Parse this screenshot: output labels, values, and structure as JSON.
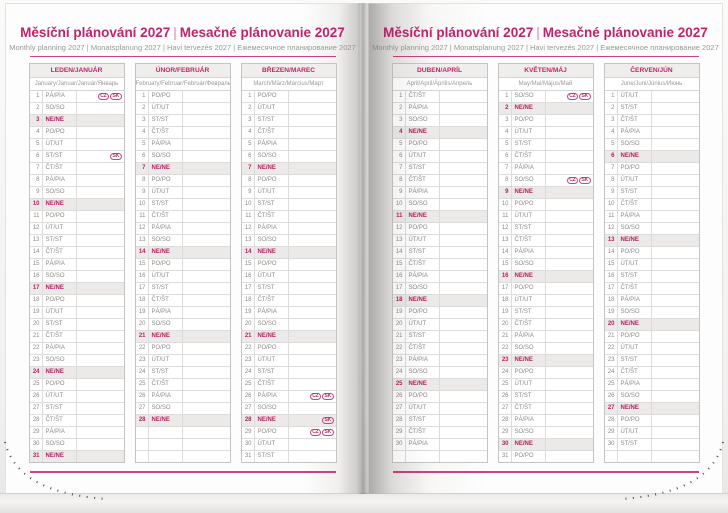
{
  "header": {
    "title_czech": "Měsíční plánování 2027",
    "title_separator": "|",
    "title_slovak": "Mesačné plánovanie 2027",
    "subtitle": "Monthly planning 2027 | Monatsplanung 2027 | Havi tervezés 2027 | Ежемесячное планирование 2027"
  },
  "colors": {
    "accent_magenta": "#c0246a",
    "sunday_text": "#b32260",
    "sunday_row_bg": "#eceae8",
    "month_header_bg": "#f0eeed",
    "grid_line": "#dedcda",
    "muted_text": "#9b9998"
  },
  "weekday_labels": [
    "PO/PO",
    "ÚT/UT",
    "ST/ST",
    "ČT/ŠT",
    "PÁ/PIA",
    "SO/SO",
    "NE/NE"
  ],
  "holiday_badge_labels": [
    "CZ",
    "SK"
  ],
  "rows_per_column": 31,
  "pages": [
    {
      "side": "left",
      "months": [
        {
          "name": "LEDEN/JANUÁR",
          "languages": "January/Januar/Január/Январь",
          "rows": [
            {
              "n": 1,
              "d": "PÁ/PIA",
              "h": [
                "CZ",
                "SK"
              ]
            },
            {
              "n": 2,
              "d": "SO/SO"
            },
            {
              "n": 3,
              "d": "NE/NE",
              "s": 1
            },
            {
              "n": 4,
              "d": "PO/PO"
            },
            {
              "n": 5,
              "d": "ÚT/UT"
            },
            {
              "n": 6,
              "d": "ST/ST",
              "h": [
                "SK"
              ]
            },
            {
              "n": 7,
              "d": "ČT/ŠT"
            },
            {
              "n": 8,
              "d": "PÁ/PIA"
            },
            {
              "n": 9,
              "d": "SO/SO"
            },
            {
              "n": 10,
              "d": "NE/NE",
              "s": 1
            },
            {
              "n": 11,
              "d": "PO/PO"
            },
            {
              "n": 12,
              "d": "ÚT/UT"
            },
            {
              "n": 13,
              "d": "ST/ST"
            },
            {
              "n": 14,
              "d": "ČT/ŠT"
            },
            {
              "n": 15,
              "d": "PÁ/PIA"
            },
            {
              "n": 16,
              "d": "SO/SO"
            },
            {
              "n": 17,
              "d": "NE/NE",
              "s": 1
            },
            {
              "n": 18,
              "d": "PO/PO"
            },
            {
              "n": 19,
              "d": "ÚT/UT"
            },
            {
              "n": 20,
              "d": "ST/ST"
            },
            {
              "n": 21,
              "d": "ČT/ŠT"
            },
            {
              "n": 22,
              "d": "PÁ/PIA"
            },
            {
              "n": 23,
              "d": "SO/SO"
            },
            {
              "n": 24,
              "d": "NE/NE",
              "s": 1
            },
            {
              "n": 25,
              "d": "PO/PO"
            },
            {
              "n": 26,
              "d": "ÚT/UT"
            },
            {
              "n": 27,
              "d": "ST/ST"
            },
            {
              "n": 28,
              "d": "ČT/ŠT"
            },
            {
              "n": 29,
              "d": "PÁ/PIA"
            },
            {
              "n": 30,
              "d": "SO/SO"
            },
            {
              "n": 31,
              "d": "NE/NE",
              "s": 1
            }
          ]
        },
        {
          "name": "ÚNOR/FEBRUÁR",
          "languages": "February/Februar/Február/Февраль",
          "rows": [
            {
              "n": 1,
              "d": "PO/PO"
            },
            {
              "n": 2,
              "d": "ÚT/UT"
            },
            {
              "n": 3,
              "d": "ST/ST"
            },
            {
              "n": 4,
              "d": "ČT/ŠT"
            },
            {
              "n": 5,
              "d": "PÁ/PIA"
            },
            {
              "n": 6,
              "d": "SO/SO"
            },
            {
              "n": 7,
              "d": "NE/NE",
              "s": 1
            },
            {
              "n": 8,
              "d": "PO/PO"
            },
            {
              "n": 9,
              "d": "ÚT/UT"
            },
            {
              "n": 10,
              "d": "ST/ST"
            },
            {
              "n": 11,
              "d": "ČT/ŠT"
            },
            {
              "n": 12,
              "d": "PÁ/PIA"
            },
            {
              "n": 13,
              "d": "SO/SO"
            },
            {
              "n": 14,
              "d": "NE/NE",
              "s": 1
            },
            {
              "n": 15,
              "d": "PO/PO"
            },
            {
              "n": 16,
              "d": "ÚT/UT"
            },
            {
              "n": 17,
              "d": "ST/ST"
            },
            {
              "n": 18,
              "d": "ČT/ŠT"
            },
            {
              "n": 19,
              "d": "PÁ/PIA"
            },
            {
              "n": 20,
              "d": "SO/SO"
            },
            {
              "n": 21,
              "d": "NE/NE",
              "s": 1
            },
            {
              "n": 22,
              "d": "PO/PO"
            },
            {
              "n": 23,
              "d": "ÚT/UT"
            },
            {
              "n": 24,
              "d": "ST/ST"
            },
            {
              "n": 25,
              "d": "ČT/ŠT"
            },
            {
              "n": 26,
              "d": "PÁ/PIA"
            },
            {
              "n": 27,
              "d": "SO/SO"
            },
            {
              "n": 28,
              "d": "NE/NE",
              "s": 1
            }
          ]
        },
        {
          "name": "BŘEZEN/MAREC",
          "languages": "March/März/Március/Март",
          "rows": [
            {
              "n": 1,
              "d": "PO/PO"
            },
            {
              "n": 2,
              "d": "ÚT/UT"
            },
            {
              "n": 3,
              "d": "ST/ST"
            },
            {
              "n": 4,
              "d": "ČT/ŠT"
            },
            {
              "n": 5,
              "d": "PÁ/PIA"
            },
            {
              "n": 6,
              "d": "SO/SO"
            },
            {
              "n": 7,
              "d": "NE/NE",
              "s": 1
            },
            {
              "n": 8,
              "d": "PO/PO"
            },
            {
              "n": 9,
              "d": "ÚT/UT"
            },
            {
              "n": 10,
              "d": "ST/ST"
            },
            {
              "n": 11,
              "d": "ČT/ŠT"
            },
            {
              "n": 12,
              "d": "PÁ/PIA"
            },
            {
              "n": 13,
              "d": "SO/SO"
            },
            {
              "n": 14,
              "d": "NE/NE",
              "s": 1
            },
            {
              "n": 15,
              "d": "PO/PO"
            },
            {
              "n": 16,
              "d": "ÚT/UT"
            },
            {
              "n": 17,
              "d": "ST/ST"
            },
            {
              "n": 18,
              "d": "ČT/ŠT"
            },
            {
              "n": 19,
              "d": "PÁ/PIA"
            },
            {
              "n": 20,
              "d": "SO/SO"
            },
            {
              "n": 21,
              "d": "NE/NE",
              "s": 1
            },
            {
              "n": 22,
              "d": "PO/PO"
            },
            {
              "n": 23,
              "d": "ÚT/UT"
            },
            {
              "n": 24,
              "d": "ST/ST"
            },
            {
              "n": 25,
              "d": "ČT/ŠT"
            },
            {
              "n": 26,
              "d": "PÁ/PIA",
              "h": [
                "CZ",
                "SK"
              ]
            },
            {
              "n": 27,
              "d": "SO/SO"
            },
            {
              "n": 28,
              "d": "NE/NE",
              "s": 1,
              "h": [
                "SK"
              ]
            },
            {
              "n": 29,
              "d": "PO/PO",
              "h": [
                "CZ",
                "SK"
              ]
            },
            {
              "n": 30,
              "d": "ÚT/UT"
            },
            {
              "n": 31,
              "d": "ST/ST"
            }
          ]
        }
      ]
    },
    {
      "side": "right",
      "months": [
        {
          "name": "DUBEN/APRÍL",
          "languages": "April/April/Április/Апрель",
          "rows": [
            {
              "n": 1,
              "d": "ČT/ŠT"
            },
            {
              "n": 2,
              "d": "PÁ/PIA"
            },
            {
              "n": 3,
              "d": "SO/SO"
            },
            {
              "n": 4,
              "d": "NE/NE",
              "s": 1
            },
            {
              "n": 5,
              "d": "PO/PO"
            },
            {
              "n": 6,
              "d": "ÚT/UT"
            },
            {
              "n": 7,
              "d": "ST/ST"
            },
            {
              "n": 8,
              "d": "ČT/ŠT"
            },
            {
              "n": 9,
              "d": "PÁ/PIA"
            },
            {
              "n": 10,
              "d": "SO/SO"
            },
            {
              "n": 11,
              "d": "NE/NE",
              "s": 1
            },
            {
              "n": 12,
              "d": "PO/PO"
            },
            {
              "n": 13,
              "d": "ÚT/UT"
            },
            {
              "n": 14,
              "d": "ST/ST"
            },
            {
              "n": 15,
              "d": "ČT/ŠT"
            },
            {
              "n": 16,
              "d": "PÁ/PIA"
            },
            {
              "n": 17,
              "d": "SO/SO"
            },
            {
              "n": 18,
              "d": "NE/NE",
              "s": 1
            },
            {
              "n": 19,
              "d": "PO/PO"
            },
            {
              "n": 20,
              "d": "ÚT/UT"
            },
            {
              "n": 21,
              "d": "ST/ST"
            },
            {
              "n": 22,
              "d": "ČT/ŠT"
            },
            {
              "n": 23,
              "d": "PÁ/PIA"
            },
            {
              "n": 24,
              "d": "SO/SO"
            },
            {
              "n": 25,
              "d": "NE/NE",
              "s": 1
            },
            {
              "n": 26,
              "d": "PO/PO"
            },
            {
              "n": 27,
              "d": "ÚT/UT"
            },
            {
              "n": 28,
              "d": "ST/ST"
            },
            {
              "n": 29,
              "d": "ČT/ŠT"
            },
            {
              "n": 30,
              "d": "PÁ/PIA"
            }
          ]
        },
        {
          "name": "KVĚTEN/MÁJ",
          "languages": "May/Mai/Május/Май",
          "rows": [
            {
              "n": 1,
              "d": "SO/SO",
              "h": [
                "CZ",
                "SK"
              ]
            },
            {
              "n": 2,
              "d": "NE/NE",
              "s": 1
            },
            {
              "n": 3,
              "d": "PO/PO"
            },
            {
              "n": 4,
              "d": "ÚT/UT"
            },
            {
              "n": 5,
              "d": "ST/ST"
            },
            {
              "n": 6,
              "d": "ČT/ŠT"
            },
            {
              "n": 7,
              "d": "PÁ/PIA"
            },
            {
              "n": 8,
              "d": "SO/SO",
              "h": [
                "CZ",
                "SK"
              ]
            },
            {
              "n": 9,
              "d": "NE/NE",
              "s": 1
            },
            {
              "n": 10,
              "d": "PO/PO"
            },
            {
              "n": 11,
              "d": "ÚT/UT"
            },
            {
              "n": 12,
              "d": "ST/ST"
            },
            {
              "n": 13,
              "d": "ČT/ŠT"
            },
            {
              "n": 14,
              "d": "PÁ/PIA"
            },
            {
              "n": 15,
              "d": "SO/SO"
            },
            {
              "n": 16,
              "d": "NE/NE",
              "s": 1
            },
            {
              "n": 17,
              "d": "PO/PO"
            },
            {
              "n": 18,
              "d": "ÚT/UT"
            },
            {
              "n": 19,
              "d": "ST/ST"
            },
            {
              "n": 20,
              "d": "ČT/ŠT"
            },
            {
              "n": 21,
              "d": "PÁ/PIA"
            },
            {
              "n": 22,
              "d": "SO/SO"
            },
            {
              "n": 23,
              "d": "NE/NE",
              "s": 1
            },
            {
              "n": 24,
              "d": "PO/PO"
            },
            {
              "n": 25,
              "d": "ÚT/UT"
            },
            {
              "n": 26,
              "d": "ST/ST"
            },
            {
              "n": 27,
              "d": "ČT/ŠT"
            },
            {
              "n": 28,
              "d": "PÁ/PIA"
            },
            {
              "n": 29,
              "d": "SO/SO"
            },
            {
              "n": 30,
              "d": "NE/NE",
              "s": 1
            },
            {
              "n": 31,
              "d": "PO/PO"
            }
          ]
        },
        {
          "name": "ČERVEN/JÚN",
          "languages": "June/Juni/Június/Июнь",
          "rows": [
            {
              "n": 1,
              "d": "ÚT/UT"
            },
            {
              "n": 2,
              "d": "ST/ST"
            },
            {
              "n": 3,
              "d": "ČT/ŠT"
            },
            {
              "n": 4,
              "d": "PÁ/PIA"
            },
            {
              "n": 5,
              "d": "SO/SO"
            },
            {
              "n": 6,
              "d": "NE/NE",
              "s": 1
            },
            {
              "n": 7,
              "d": "PO/PO"
            },
            {
              "n": 8,
              "d": "ÚT/UT"
            },
            {
              "n": 9,
              "d": "ST/ST"
            },
            {
              "n": 10,
              "d": "ČT/ŠT"
            },
            {
              "n": 11,
              "d": "PÁ/PIA"
            },
            {
              "n": 12,
              "d": "SO/SO"
            },
            {
              "n": 13,
              "d": "NE/NE",
              "s": 1
            },
            {
              "n": 14,
              "d": "PO/PO"
            },
            {
              "n": 15,
              "d": "ÚT/UT"
            },
            {
              "n": 16,
              "d": "ST/ST"
            },
            {
              "n": 17,
              "d": "ČT/ŠT"
            },
            {
              "n": 18,
              "d": "PÁ/PIA"
            },
            {
              "n": 19,
              "d": "SO/SO"
            },
            {
              "n": 20,
              "d": "NE/NE",
              "s": 1
            },
            {
              "n": 21,
              "d": "PO/PO"
            },
            {
              "n": 22,
              "d": "ÚT/UT"
            },
            {
              "n": 23,
              "d": "ST/ST"
            },
            {
              "n": 24,
              "d": "ČT/ŠT"
            },
            {
              "n": 25,
              "d": "PÁ/PIA"
            },
            {
              "n": 26,
              "d": "SO/SO"
            },
            {
              "n": 27,
              "d": "NE/NE",
              "s": 1
            },
            {
              "n": 28,
              "d": "PO/PO"
            },
            {
              "n": 29,
              "d": "ÚT/UT"
            },
            {
              "n": 30,
              "d": "ST/ST"
            }
          ]
        }
      ]
    }
  ]
}
